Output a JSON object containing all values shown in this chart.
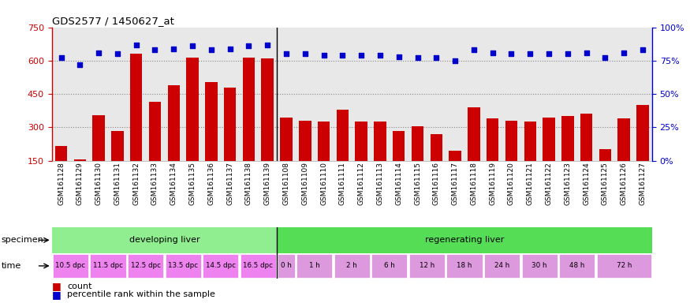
{
  "title": "GDS2577 / 1450627_at",
  "samples": [
    "GSM161128",
    "GSM161129",
    "GSM161130",
    "GSM161131",
    "GSM161132",
    "GSM161133",
    "GSM161134",
    "GSM161135",
    "GSM161136",
    "GSM161137",
    "GSM161138",
    "GSM161139",
    "GSM161108",
    "GSM161109",
    "GSM161110",
    "GSM161111",
    "GSM161112",
    "GSM161113",
    "GSM161114",
    "GSM161115",
    "GSM161116",
    "GSM161117",
    "GSM161118",
    "GSM161119",
    "GSM161120",
    "GSM161121",
    "GSM161122",
    "GSM161123",
    "GSM161124",
    "GSM161125",
    "GSM161126",
    "GSM161127"
  ],
  "counts": [
    215,
    155,
    355,
    285,
    630,
    415,
    490,
    615,
    505,
    480,
    615,
    610,
    345,
    330,
    325,
    380,
    325,
    325,
    285,
    305,
    270,
    195,
    390,
    340,
    330,
    325,
    345,
    350,
    360,
    200,
    340,
    400
  ],
  "percentiles": [
    77,
    72,
    81,
    80,
    87,
    83,
    84,
    86,
    83,
    84,
    86,
    87,
    80,
    80,
    79,
    79,
    79,
    79,
    78,
    77,
    77,
    75,
    83,
    81,
    80,
    80,
    80,
    80,
    81,
    77,
    81,
    83
  ],
  "bar_color": "#cc0000",
  "dot_color": "#0000cc",
  "ylim_left": [
    150,
    750
  ],
  "ylim_right": [
    0,
    100
  ],
  "yticks_left": [
    150,
    300,
    450,
    600,
    750
  ],
  "yticks_right": [
    0,
    25,
    50,
    75,
    100
  ],
  "grid_values": [
    300,
    450,
    600
  ],
  "plot_bg_color": "#e8e8e8",
  "background_color": "#ffffff",
  "developing_color": "#90ee90",
  "regenerating_color": "#55dd55",
  "time_dpc_color": "#ee82ee",
  "time_h_color": "#dd99dd",
  "specimen_groups": [
    {
      "label": "developing liver",
      "start": 0,
      "end": 12,
      "color": "#90ee90"
    },
    {
      "label": "regenerating liver",
      "start": 12,
      "end": 32,
      "color": "#55dd55"
    }
  ],
  "time_groups_dpc": [
    {
      "label": "10.5 dpc",
      "start": 0,
      "end": 2
    },
    {
      "label": "11.5 dpc",
      "start": 2,
      "end": 4
    },
    {
      "label": "12.5 dpc",
      "start": 4,
      "end": 6
    },
    {
      "label": "13.5 dpc",
      "start": 6,
      "end": 8
    },
    {
      "label": "14.5 dpc",
      "start": 8,
      "end": 10
    },
    {
      "label": "16.5 dpc",
      "start": 10,
      "end": 12
    }
  ],
  "time_groups_h": [
    {
      "label": "0 h",
      "start": 12,
      "end": 13
    },
    {
      "label": "1 h",
      "start": 13,
      "end": 15
    },
    {
      "label": "2 h",
      "start": 15,
      "end": 17
    },
    {
      "label": "6 h",
      "start": 17,
      "end": 19
    },
    {
      "label": "12 h",
      "start": 19,
      "end": 21
    },
    {
      "label": "18 h",
      "start": 21,
      "end": 23
    },
    {
      "label": "24 h",
      "start": 23,
      "end": 25
    },
    {
      "label": "30 h",
      "start": 25,
      "end": 27
    },
    {
      "label": "48 h",
      "start": 27,
      "end": 29
    },
    {
      "label": "72 h",
      "start": 29,
      "end": 32
    }
  ],
  "legend_count_color": "#cc0000",
  "legend_pct_color": "#0000cc"
}
